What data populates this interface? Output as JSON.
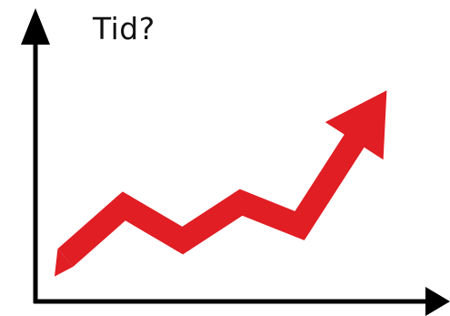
{
  "y_axis_label": "Tid?",
  "colors": {
    "axis": "#000000",
    "arrow": "#e01e24",
    "background": "#ffffff"
  },
  "chart_data": {
    "type": "line",
    "title": "",
    "xlabel": "",
    "ylabel": "Tid?",
    "grid": false,
    "series": [
      {
        "values": [
          0,
          42,
          14,
          45,
          26,
          100
        ]
      }
    ]
  }
}
